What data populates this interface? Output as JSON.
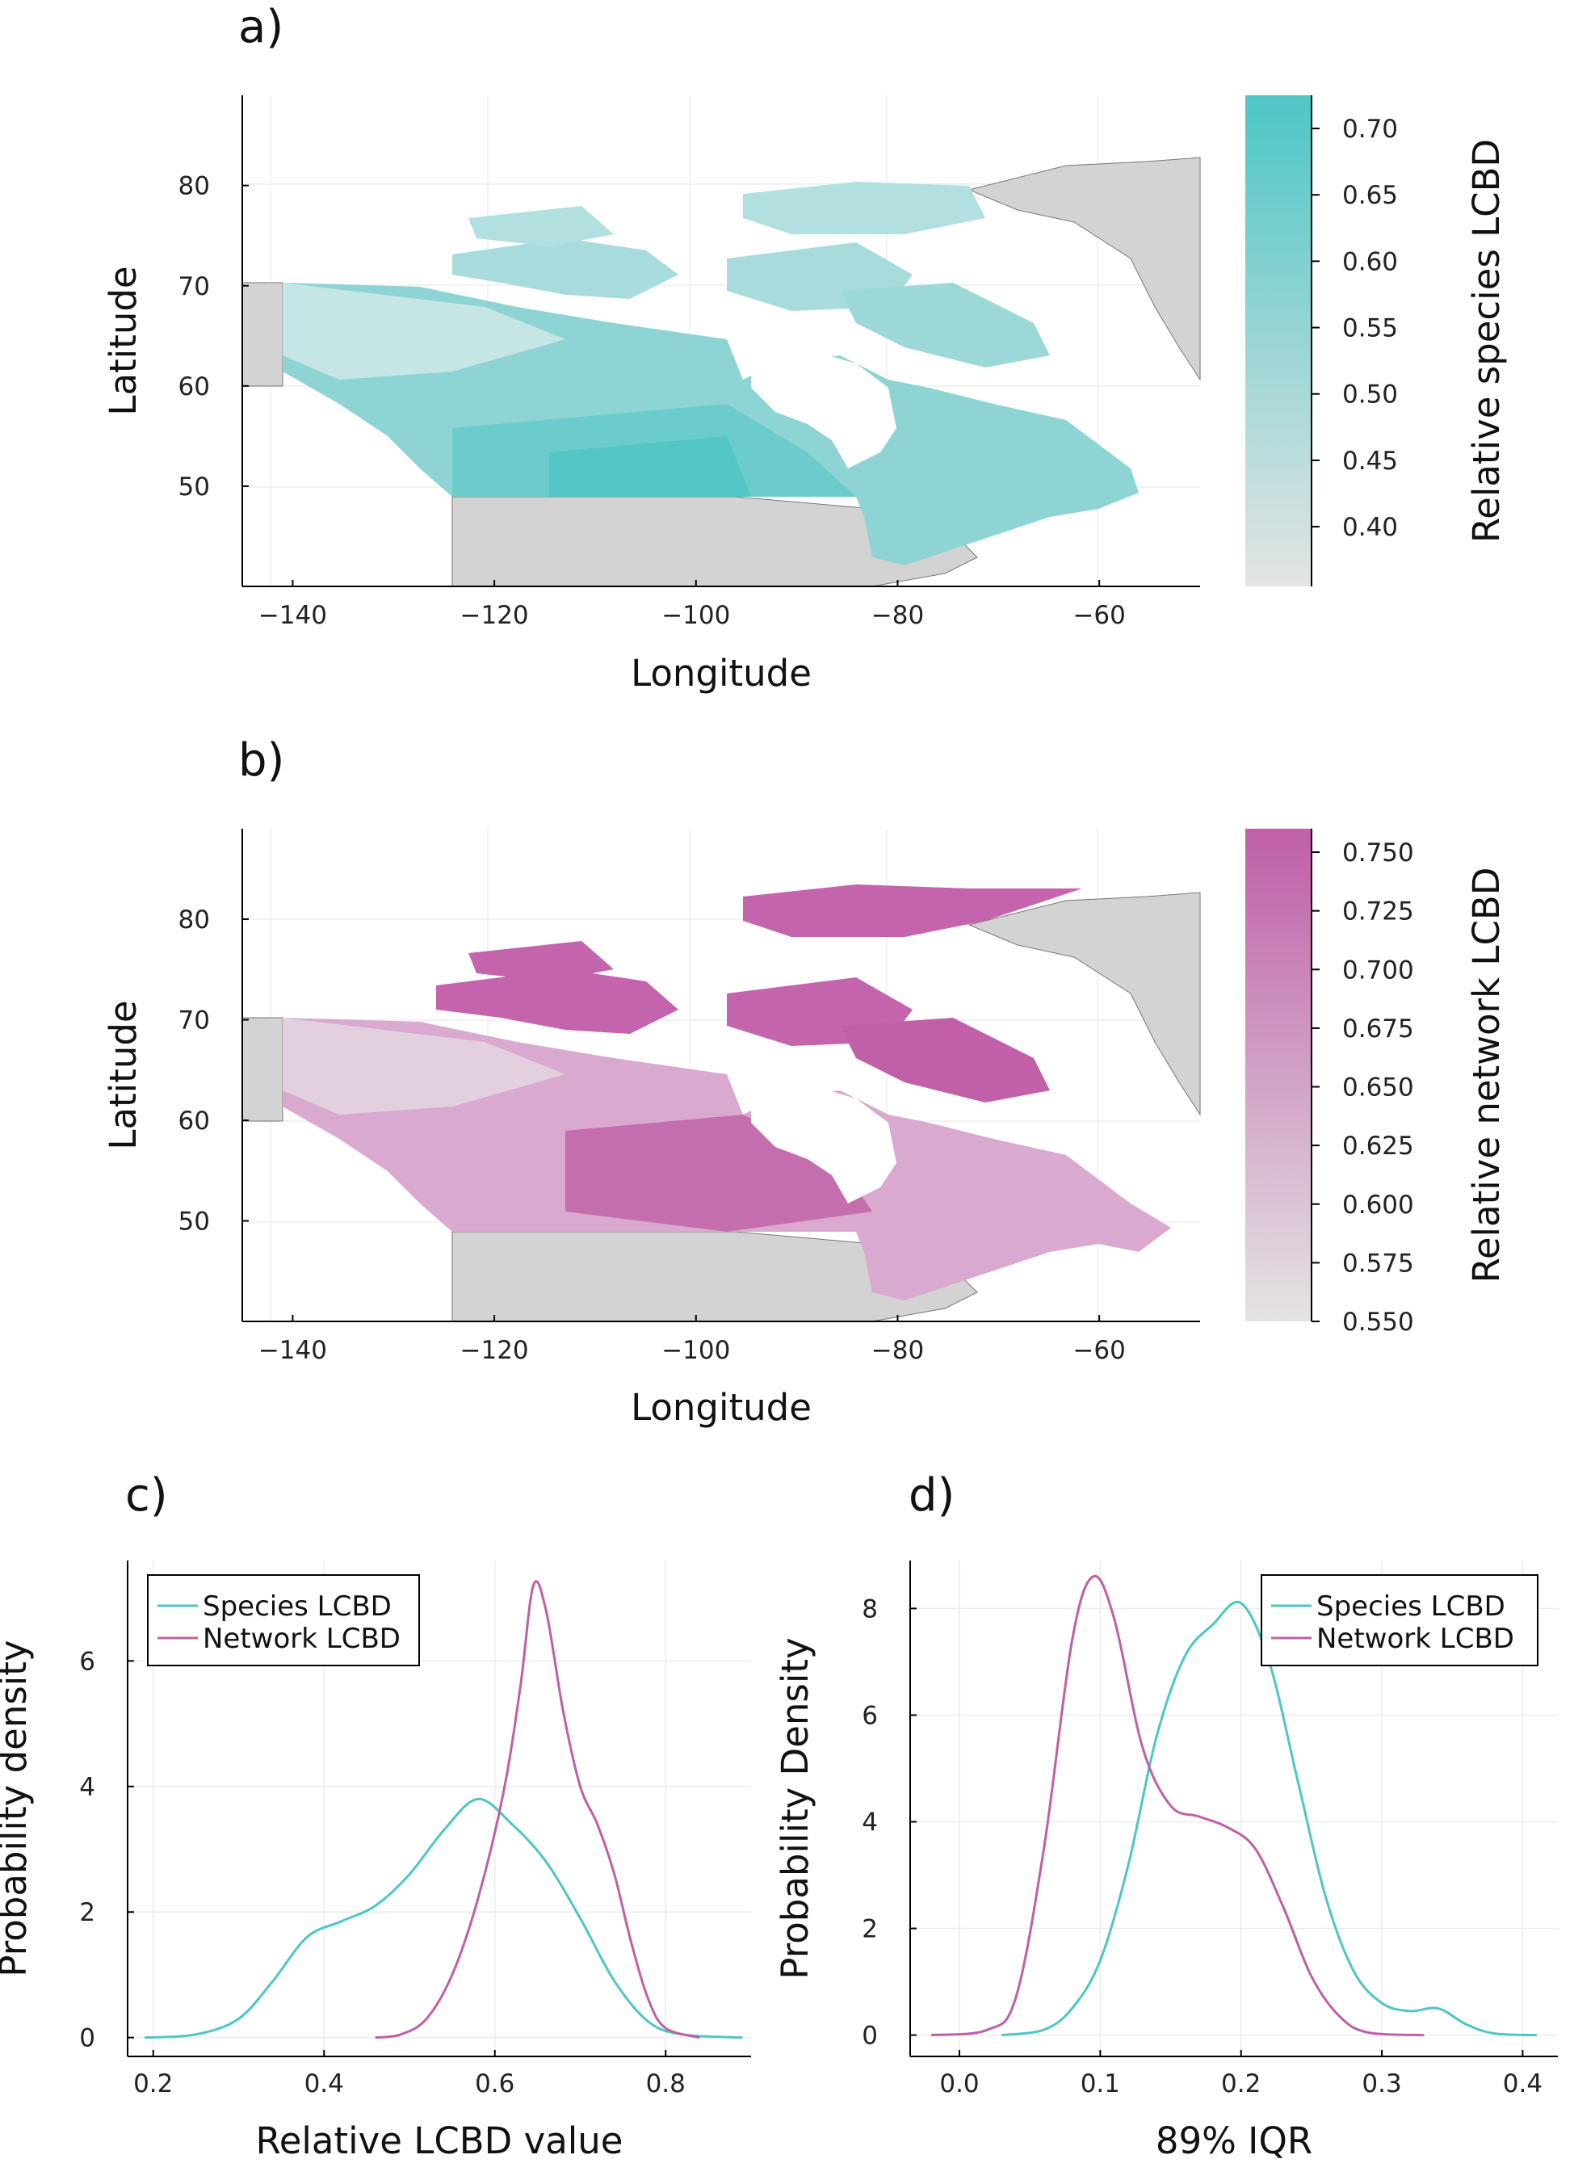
{
  "chart_data": [
    {
      "panel": "a)",
      "type": "heatmap",
      "xlabel": "Longitude",
      "ylabel": "Latitude",
      "xlim": [
        -145,
        -50
      ],
      "ylim": [
        40,
        89
      ],
      "xticks": [
        -140,
        -120,
        -100,
        -80,
        -60
      ],
      "yticks": [
        50,
        60,
        70,
        80
      ],
      "colorbar": {
        "label": "Relative species LCBD",
        "range": [
          0.355,
          0.725
        ],
        "ticks": [
          0.4,
          0.45,
          0.5,
          0.55,
          0.6,
          0.65,
          0.7
        ],
        "tick_labels": [
          "0.40",
          "0.45",
          "0.50",
          "0.55",
          "0.60",
          "0.65",
          "0.70"
        ],
        "color_low": "#e4e4e4",
        "color_high": "#4ec6c6"
      }
    },
    {
      "panel": "b)",
      "type": "heatmap",
      "xlabel": "Longitude",
      "ylabel": "Latitude",
      "xlim": [
        -145,
        -50
      ],
      "ylim": [
        40,
        89
      ],
      "xticks": [
        -140,
        -120,
        -100,
        -80,
        -60
      ],
      "yticks": [
        50,
        60,
        70,
        80
      ],
      "colorbar": {
        "label": "Relative network LCBD",
        "range": [
          0.55,
          0.76
        ],
        "ticks": [
          0.55,
          0.575,
          0.6,
          0.625,
          0.65,
          0.675,
          0.7,
          0.725,
          0.75
        ],
        "tick_labels": [
          "0.550",
          "0.575",
          "0.600",
          "0.625",
          "0.650",
          "0.675",
          "0.700",
          "0.725",
          "0.750"
        ],
        "color_low": "#e4e4e4",
        "color_high": "#bf5fa8"
      }
    },
    {
      "panel": "c)",
      "type": "line",
      "xlabel": "Relative LCBD value",
      "ylabel": "Probability density",
      "xlim": [
        0.17,
        0.9
      ],
      "ylim": [
        -0.3,
        7.6
      ],
      "xticks": [
        0.2,
        0.4,
        0.6,
        0.8
      ],
      "xtick_labels": [
        "0.2",
        "0.4",
        "0.6",
        "0.8"
      ],
      "yticks": [
        0,
        2,
        4,
        6
      ],
      "ytick_labels": [
        "0",
        "2",
        "4",
        "6"
      ],
      "legend": "top-left",
      "series": [
        {
          "name": "Species LCBD",
          "color": "#4ec6c6",
          "x": [
            0.19,
            0.25,
            0.3,
            0.34,
            0.38,
            0.42,
            0.46,
            0.5,
            0.54,
            0.58,
            0.62,
            0.66,
            0.7,
            0.74,
            0.78,
            0.82,
            0.89
          ],
          "y": [
            0.0,
            0.05,
            0.3,
            0.9,
            1.6,
            1.85,
            2.1,
            2.6,
            3.3,
            3.8,
            3.4,
            2.8,
            1.9,
            0.9,
            0.25,
            0.05,
            0.0
          ]
        },
        {
          "name": "Network LCBD",
          "color": "#bf5fa8",
          "x": [
            0.46,
            0.49,
            0.52,
            0.55,
            0.58,
            0.61,
            0.63,
            0.645,
            0.66,
            0.68,
            0.7,
            0.72,
            0.74,
            0.76,
            0.78,
            0.8,
            0.84
          ],
          "y": [
            0.0,
            0.05,
            0.3,
            1.0,
            2.2,
            3.9,
            5.6,
            7.2,
            6.8,
            5.2,
            4.0,
            3.4,
            2.6,
            1.5,
            0.6,
            0.15,
            0.0
          ]
        }
      ]
    },
    {
      "panel": "d)",
      "type": "line",
      "xlabel": "89% IQR",
      "ylabel": "Probability Density",
      "xlim": [
        -0.035,
        0.425
      ],
      "ylim": [
        -0.4,
        8.9
      ],
      "xticks": [
        0.0,
        0.1,
        0.2,
        0.3,
        0.4
      ],
      "xtick_labels": [
        "0.0",
        "0.1",
        "0.2",
        "0.3",
        "0.4"
      ],
      "yticks": [
        0,
        2,
        4,
        6,
        8
      ],
      "ytick_labels": [
        "0",
        "2",
        "4",
        "6",
        "8"
      ],
      "legend": "top-right",
      "series": [
        {
          "name": "Species LCBD",
          "color": "#4ec6c6",
          "x": [
            0.03,
            0.06,
            0.08,
            0.1,
            0.12,
            0.14,
            0.16,
            0.18,
            0.2,
            0.22,
            0.24,
            0.26,
            0.28,
            0.3,
            0.32,
            0.34,
            0.36,
            0.38,
            0.41
          ],
          "y": [
            0.0,
            0.1,
            0.5,
            1.4,
            3.2,
            5.6,
            7.1,
            7.7,
            8.1,
            7.0,
            4.8,
            2.6,
            1.2,
            0.6,
            0.45,
            0.5,
            0.2,
            0.03,
            0.0
          ]
        },
        {
          "name": "Network LCBD",
          "color": "#bf5fa8",
          "x": [
            -0.02,
            0.02,
            0.04,
            0.06,
            0.08,
            0.095,
            0.11,
            0.13,
            0.15,
            0.17,
            0.19,
            0.21,
            0.23,
            0.25,
            0.27,
            0.29,
            0.33
          ],
          "y": [
            0.0,
            0.1,
            0.7,
            3.5,
            7.4,
            8.6,
            7.8,
            5.4,
            4.3,
            4.1,
            3.9,
            3.5,
            2.4,
            1.1,
            0.35,
            0.05,
            0.0
          ]
        }
      ]
    }
  ]
}
